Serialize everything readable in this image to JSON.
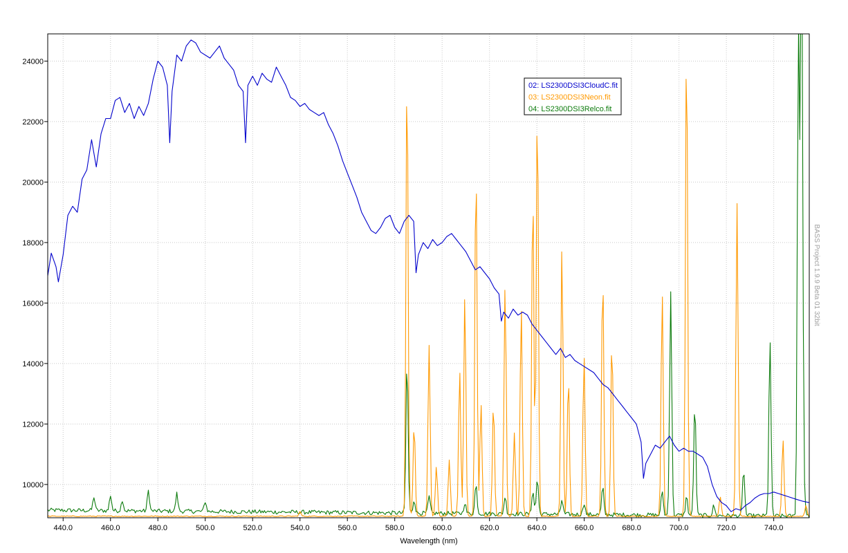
{
  "chart_data": {
    "type": "line",
    "xlabel": "Wavelength (nm)",
    "ylabel": "",
    "xlim": [
      433.5,
      755.0
    ],
    "ylim": [
      8900,
      24900
    ],
    "grid": true,
    "legend_position": "top-center-right",
    "xticks": [
      440,
      460,
      480,
      500,
      520,
      540,
      560,
      580,
      600,
      620,
      640,
      660,
      680,
      700,
      720,
      740
    ],
    "xtick_labels": [
      "440.0",
      "460.0",
      "480.0",
      "500.0",
      "520.0",
      "540.0",
      "560.0",
      "580.0",
      "600.0",
      "620.0",
      "640.0",
      "660.0",
      "680.0",
      "700.0",
      "720.0",
      "740.0"
    ],
    "yticks": [
      10000,
      12000,
      14000,
      16000,
      18000,
      20000,
      22000,
      24000
    ],
    "ytick_labels": [
      "10000",
      "12000",
      "14000",
      "16000",
      "18000",
      "20000",
      "22000",
      "24000"
    ],
    "series": [
      {
        "name": "02: LS2300DSI3CloudC.fit",
        "color": "#0000cc",
        "kind": "continuum",
        "points": [
          [
            433.5,
            16900
          ],
          [
            435,
            17650
          ],
          [
            437,
            17200
          ],
          [
            438,
            16700
          ],
          [
            440,
            17600
          ],
          [
            442,
            18900
          ],
          [
            444,
            19200
          ],
          [
            446,
            19000
          ],
          [
            448,
            20100
          ],
          [
            450,
            20400
          ],
          [
            452,
            21400
          ],
          [
            454,
            20500
          ],
          [
            456,
            21600
          ],
          [
            458,
            22100
          ],
          [
            460,
            22100
          ],
          [
            462,
            22700
          ],
          [
            464,
            22800
          ],
          [
            466,
            22300
          ],
          [
            468,
            22600
          ],
          [
            470,
            22100
          ],
          [
            472,
            22500
          ],
          [
            474,
            22200
          ],
          [
            476,
            22600
          ],
          [
            478,
            23400
          ],
          [
            480,
            24000
          ],
          [
            482,
            23800
          ],
          [
            484,
            23200
          ],
          [
            485,
            21300
          ],
          [
            486,
            23000
          ],
          [
            488,
            24200
          ],
          [
            490,
            24000
          ],
          [
            492,
            24500
          ],
          [
            494,
            24700
          ],
          [
            496,
            24600
          ],
          [
            498,
            24300
          ],
          [
            500,
            24200
          ],
          [
            502,
            24100
          ],
          [
            504,
            24300
          ],
          [
            506,
            24500
          ],
          [
            508,
            24100
          ],
          [
            510,
            23900
          ],
          [
            512,
            23700
          ],
          [
            514,
            23200
          ],
          [
            516,
            23000
          ],
          [
            517,
            21300
          ],
          [
            518,
            23200
          ],
          [
            520,
            23500
          ],
          [
            522,
            23200
          ],
          [
            524,
            23600
          ],
          [
            526,
            23400
          ],
          [
            528,
            23300
          ],
          [
            530,
            23800
          ],
          [
            532,
            23500
          ],
          [
            534,
            23200
          ],
          [
            536,
            22800
          ],
          [
            538,
            22700
          ],
          [
            540,
            22500
          ],
          [
            542,
            22600
          ],
          [
            544,
            22400
          ],
          [
            546,
            22300
          ],
          [
            548,
            22200
          ],
          [
            550,
            22300
          ],
          [
            552,
            21900
          ],
          [
            554,
            21600
          ],
          [
            556,
            21200
          ],
          [
            558,
            20700
          ],
          [
            560,
            20300
          ],
          [
            562,
            19900
          ],
          [
            564,
            19500
          ],
          [
            566,
            19000
          ],
          [
            568,
            18700
          ],
          [
            570,
            18400
          ],
          [
            572,
            18300
          ],
          [
            574,
            18500
          ],
          [
            576,
            18800
          ],
          [
            578,
            18900
          ],
          [
            580,
            18500
          ],
          [
            582,
            18300
          ],
          [
            584,
            18700
          ],
          [
            586,
            18900
          ],
          [
            588,
            18700
          ],
          [
            589,
            17000
          ],
          [
            590,
            17600
          ],
          [
            592,
            18000
          ],
          [
            594,
            17800
          ],
          [
            596,
            18100
          ],
          [
            598,
            17900
          ],
          [
            600,
            18000
          ],
          [
            602,
            18200
          ],
          [
            604,
            18300
          ],
          [
            606,
            18100
          ],
          [
            608,
            17900
          ],
          [
            610,
            17700
          ],
          [
            612,
            17400
          ],
          [
            614,
            17100
          ],
          [
            616,
            17200
          ],
          [
            618,
            17000
          ],
          [
            620,
            16800
          ],
          [
            622,
            16500
          ],
          [
            624,
            16300
          ],
          [
            625,
            15400
          ],
          [
            626,
            15700
          ],
          [
            628,
            15500
          ],
          [
            630,
            15800
          ],
          [
            632,
            15600
          ],
          [
            634,
            15700
          ],
          [
            636,
            15600
          ],
          [
            638,
            15300
          ],
          [
            640,
            15100
          ],
          [
            642,
            14900
          ],
          [
            644,
            14700
          ],
          [
            646,
            14500
          ],
          [
            648,
            14300
          ],
          [
            650,
            14500
          ],
          [
            652,
            14200
          ],
          [
            654,
            14300
          ],
          [
            656,
            14100
          ],
          [
            658,
            14000
          ],
          [
            660,
            13900
          ],
          [
            662,
            13800
          ],
          [
            664,
            13700
          ],
          [
            666,
            13500
          ],
          [
            668,
            13300
          ],
          [
            670,
            13200
          ],
          [
            672,
            13000
          ],
          [
            674,
            12800
          ],
          [
            676,
            12600
          ],
          [
            678,
            12400
          ],
          [
            680,
            12200
          ],
          [
            682,
            12000
          ],
          [
            684,
            11400
          ],
          [
            685,
            10200
          ],
          [
            686,
            10700
          ],
          [
            688,
            11000
          ],
          [
            690,
            11300
          ],
          [
            692,
            11200
          ],
          [
            694,
            11400
          ],
          [
            696,
            11600
          ],
          [
            698,
            11300
          ],
          [
            700,
            11100
          ],
          [
            702,
            11200
          ],
          [
            704,
            11100
          ],
          [
            706,
            11100
          ],
          [
            708,
            11000
          ],
          [
            710,
            10900
          ],
          [
            712,
            10600
          ],
          [
            714,
            10000
          ],
          [
            716,
            9600
          ],
          [
            718,
            9400
          ],
          [
            720,
            9300
          ],
          [
            722,
            9100
          ],
          [
            724,
            9200
          ],
          [
            726,
            9150
          ],
          [
            728,
            9300
          ],
          [
            730,
            9400
          ],
          [
            732,
            9550
          ],
          [
            734,
            9650
          ],
          [
            736,
            9700
          ],
          [
            738,
            9700
          ],
          [
            740,
            9750
          ],
          [
            742,
            9700
          ],
          [
            744,
            9650
          ],
          [
            746,
            9600
          ],
          [
            748,
            9550
          ],
          [
            750,
            9500
          ],
          [
            752,
            9450
          ],
          [
            755,
            9400
          ]
        ]
      },
      {
        "name": "03: LS2300DSI3Neon.fit",
        "color": "#ff9900",
        "kind": "lines",
        "baseline": 8950,
        "lines": [
          [
            540.0,
            9100
          ],
          [
            585.2,
            23900
          ],
          [
            588.2,
            12000
          ],
          [
            594.5,
            14600
          ],
          [
            597.6,
            10600
          ],
          [
            603.0,
            10800
          ],
          [
            607.4,
            13800
          ],
          [
            609.6,
            16300
          ],
          [
            614.3,
            20700
          ],
          [
            616.4,
            12700
          ],
          [
            621.7,
            12700
          ],
          [
            626.6,
            16600
          ],
          [
            630.5,
            11700
          ],
          [
            633.4,
            15900
          ],
          [
            638.3,
            19900
          ],
          [
            640.2,
            22800
          ],
          [
            650.6,
            17900
          ],
          [
            653.3,
            13600
          ],
          [
            659.9,
            14300
          ],
          [
            667.8,
            17000
          ],
          [
            671.7,
            14800
          ],
          [
            692.9,
            16400
          ],
          [
            703.2,
            24900
          ],
          [
            717.4,
            9600
          ],
          [
            724.5,
            19300
          ],
          [
            743.9,
            11500
          ],
          [
            753.6,
            9300
          ]
        ]
      },
      {
        "name": "04: LS2300DSI3Relco.fit",
        "color": "#0a7a0a",
        "kind": "lines",
        "baseline": 9150,
        "baseline_end": 8950,
        "lines": [
          [
            453.0,
            9600
          ],
          [
            460.0,
            9650
          ],
          [
            465.0,
            9500
          ],
          [
            476.0,
            9800
          ],
          [
            488.0,
            9700
          ],
          [
            500.0,
            9450
          ],
          [
            585.2,
            14100
          ],
          [
            588.2,
            9500
          ],
          [
            594.5,
            9600
          ],
          [
            609.6,
            9400
          ],
          [
            614.3,
            10000
          ],
          [
            626.6,
            9600
          ],
          [
            638.3,
            9800
          ],
          [
            640.2,
            10200
          ],
          [
            650.6,
            9500
          ],
          [
            659.9,
            9400
          ],
          [
            667.8,
            9900
          ],
          [
            692.9,
            9800
          ],
          [
            696.5,
            16400
          ],
          [
            703.2,
            9600
          ],
          [
            706.7,
            12700
          ],
          [
            714.7,
            9300
          ],
          [
            727.3,
            10500
          ],
          [
            738.4,
            14800
          ],
          [
            750.4,
            24900
          ],
          [
            751.5,
            16600
          ],
          [
            751.9,
            22100
          ],
          [
            753.0,
            9400
          ]
        ]
      }
    ],
    "watermark": "BASS Project 1.9.9 Beta 01 32bit"
  }
}
